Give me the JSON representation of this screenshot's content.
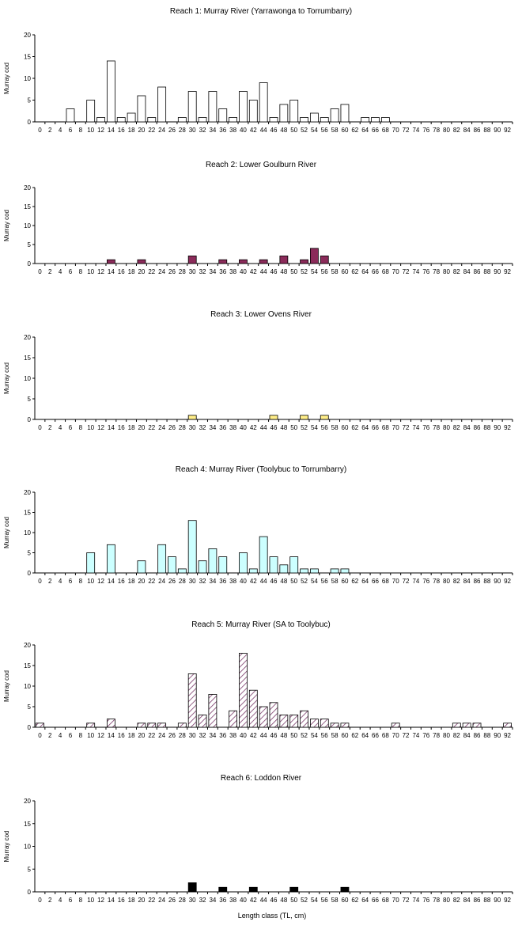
{
  "x_axis_label": "Length class (TL, cm)",
  "chart_data": [
    {
      "type": "bar",
      "title": "Reach 1: Murray River (Yarrawonga to Torrumbarry)",
      "ylabel": "Murray cod",
      "ylim": [
        0,
        20
      ],
      "yticks": [
        0,
        5,
        10,
        15,
        20
      ],
      "categories": [
        0,
        2,
        4,
        6,
        8,
        10,
        12,
        14,
        16,
        18,
        20,
        22,
        24,
        26,
        28,
        30,
        32,
        34,
        36,
        38,
        40,
        42,
        44,
        46,
        48,
        50,
        52,
        54,
        56,
        58,
        60,
        62,
        64,
        66,
        68,
        70,
        72,
        74,
        76,
        78,
        80,
        82,
        84,
        86,
        88,
        90,
        92
      ],
      "values": [
        0,
        0,
        0,
        3,
        0,
        5,
        1,
        14,
        1,
        2,
        6,
        1,
        8,
        0,
        1,
        7,
        1,
        7,
        3,
        1,
        7,
        5,
        9,
        1,
        4,
        5,
        1,
        2,
        1,
        3,
        4,
        0,
        1,
        1,
        1,
        0,
        0,
        0,
        0,
        0,
        0,
        0,
        0,
        0,
        0,
        0,
        0
      ],
      "fill": "#ffffff",
      "pattern": "none"
    },
    {
      "type": "bar",
      "title": "Reach 2: Lower Goulburn River",
      "ylabel": "Murray cod",
      "ylim": [
        0,
        20
      ],
      "yticks": [
        0,
        5,
        10,
        15,
        20
      ],
      "categories": [
        0,
        2,
        4,
        6,
        8,
        10,
        12,
        14,
        16,
        18,
        20,
        22,
        24,
        26,
        28,
        30,
        32,
        34,
        36,
        38,
        40,
        42,
        44,
        46,
        48,
        50,
        52,
        54,
        56,
        58,
        60,
        62,
        64,
        66,
        68,
        70,
        72,
        74,
        76,
        78,
        80,
        82,
        84,
        86,
        88,
        90,
        92
      ],
      "values": [
        0,
        0,
        0,
        0,
        0,
        0,
        0,
        1,
        0,
        0,
        1,
        0,
        0,
        0,
        0,
        2,
        0,
        0,
        1,
        0,
        1,
        0,
        1,
        0,
        2,
        0,
        1,
        4,
        2,
        0,
        0,
        0,
        0,
        0,
        0,
        0,
        0,
        0,
        0,
        0,
        0,
        0,
        0,
        0,
        0,
        0,
        0
      ],
      "fill": "#8b2b5a",
      "pattern": "none"
    },
    {
      "type": "bar",
      "title": "Reach 3: Lower Ovens River",
      "ylabel": "Murray cod",
      "ylim": [
        0,
        20
      ],
      "yticks": [
        0,
        5,
        10,
        15,
        20
      ],
      "categories": [
        0,
        2,
        4,
        6,
        8,
        10,
        12,
        14,
        16,
        18,
        20,
        22,
        24,
        26,
        28,
        30,
        32,
        34,
        36,
        38,
        40,
        42,
        44,
        46,
        48,
        50,
        52,
        54,
        56,
        58,
        60,
        62,
        64,
        66,
        68,
        70,
        72,
        74,
        76,
        78,
        80,
        82,
        84,
        86,
        88,
        90,
        92
      ],
      "values": [
        0,
        0,
        0,
        0,
        0,
        0,
        0,
        0,
        0,
        0,
        0,
        0,
        0,
        0,
        0,
        1,
        0,
        0,
        0,
        0,
        0,
        0,
        0,
        1,
        0,
        0,
        1,
        0,
        1,
        0,
        0,
        0,
        0,
        0,
        0,
        0,
        0,
        0,
        0,
        0,
        0,
        0,
        0,
        0,
        0,
        0,
        0
      ],
      "fill": "#ffee88",
      "pattern": "none"
    },
    {
      "type": "bar",
      "title": "Reach 4: Murray River (Toolybuc to Torrumbarry)",
      "ylabel": "Murray cod",
      "ylim": [
        0,
        20
      ],
      "yticks": [
        0,
        5,
        10,
        15,
        20
      ],
      "categories": [
        0,
        2,
        4,
        6,
        8,
        10,
        12,
        14,
        16,
        18,
        20,
        22,
        24,
        26,
        28,
        30,
        32,
        34,
        36,
        38,
        40,
        42,
        44,
        46,
        48,
        50,
        52,
        54,
        56,
        58,
        60,
        62,
        64,
        66,
        68,
        70,
        72,
        74,
        76,
        78,
        80,
        82,
        84,
        86,
        88,
        90,
        92
      ],
      "values": [
        0,
        0,
        0,
        0,
        0,
        5,
        0,
        7,
        0,
        0,
        3,
        0,
        7,
        4,
        1,
        13,
        3,
        6,
        4,
        0,
        5,
        1,
        9,
        4,
        2,
        4,
        1,
        1,
        0,
        1,
        1,
        0,
        0,
        0,
        0,
        0,
        0,
        0,
        0,
        0,
        0,
        0,
        0,
        0,
        0,
        0,
        0
      ],
      "fill": "#ccffff",
      "pattern": "none"
    },
    {
      "type": "bar",
      "title": "Reach 5: Murray River (SA to Toolybuc)",
      "ylabel": "Murray cod",
      "ylim": [
        0,
        20
      ],
      "yticks": [
        0,
        5,
        10,
        15,
        20
      ],
      "categories": [
        0,
        2,
        4,
        6,
        8,
        10,
        12,
        14,
        16,
        18,
        20,
        22,
        24,
        26,
        28,
        30,
        32,
        34,
        36,
        38,
        40,
        42,
        44,
        46,
        48,
        50,
        52,
        54,
        56,
        58,
        60,
        62,
        64,
        66,
        68,
        70,
        72,
        74,
        76,
        78,
        80,
        82,
        84,
        86,
        88,
        90,
        92
      ],
      "values": [
        1,
        0,
        0,
        0,
        0,
        1,
        0,
        2,
        0,
        0,
        1,
        1,
        1,
        0,
        1,
        13,
        3,
        8,
        0,
        4,
        18,
        9,
        5,
        6,
        3,
        3,
        4,
        2,
        2,
        1,
        1,
        0,
        0,
        0,
        0,
        1,
        0,
        0,
        0,
        0,
        0,
        1,
        1,
        1,
        0,
        0,
        1
      ],
      "fill": "#ffffff",
      "pattern": "hatch",
      "pattern_color": "#7a3a6a"
    },
    {
      "type": "bar",
      "title": "Reach 6: Loddon River",
      "ylabel": "Murray cod",
      "ylim": [
        0,
        20
      ],
      "yticks": [
        0,
        5,
        10,
        15,
        20
      ],
      "categories": [
        0,
        2,
        4,
        6,
        8,
        10,
        12,
        14,
        16,
        18,
        20,
        22,
        24,
        26,
        28,
        30,
        32,
        34,
        36,
        38,
        40,
        42,
        44,
        46,
        48,
        50,
        52,
        54,
        56,
        58,
        60,
        62,
        64,
        66,
        68,
        70,
        72,
        74,
        76,
        78,
        80,
        82,
        84,
        86,
        88,
        90,
        92
      ],
      "values": [
        0,
        0,
        0,
        0,
        0,
        0,
        0,
        0,
        0,
        0,
        0,
        0,
        0,
        0,
        0,
        2,
        0,
        0,
        1,
        0,
        0,
        1,
        0,
        0,
        0,
        1,
        0,
        0,
        0,
        0,
        1,
        0,
        0,
        0,
        0,
        0,
        0,
        0,
        0,
        0,
        0,
        0,
        0,
        0,
        0,
        0,
        0
      ],
      "fill": "#000000",
      "pattern": "none"
    }
  ]
}
